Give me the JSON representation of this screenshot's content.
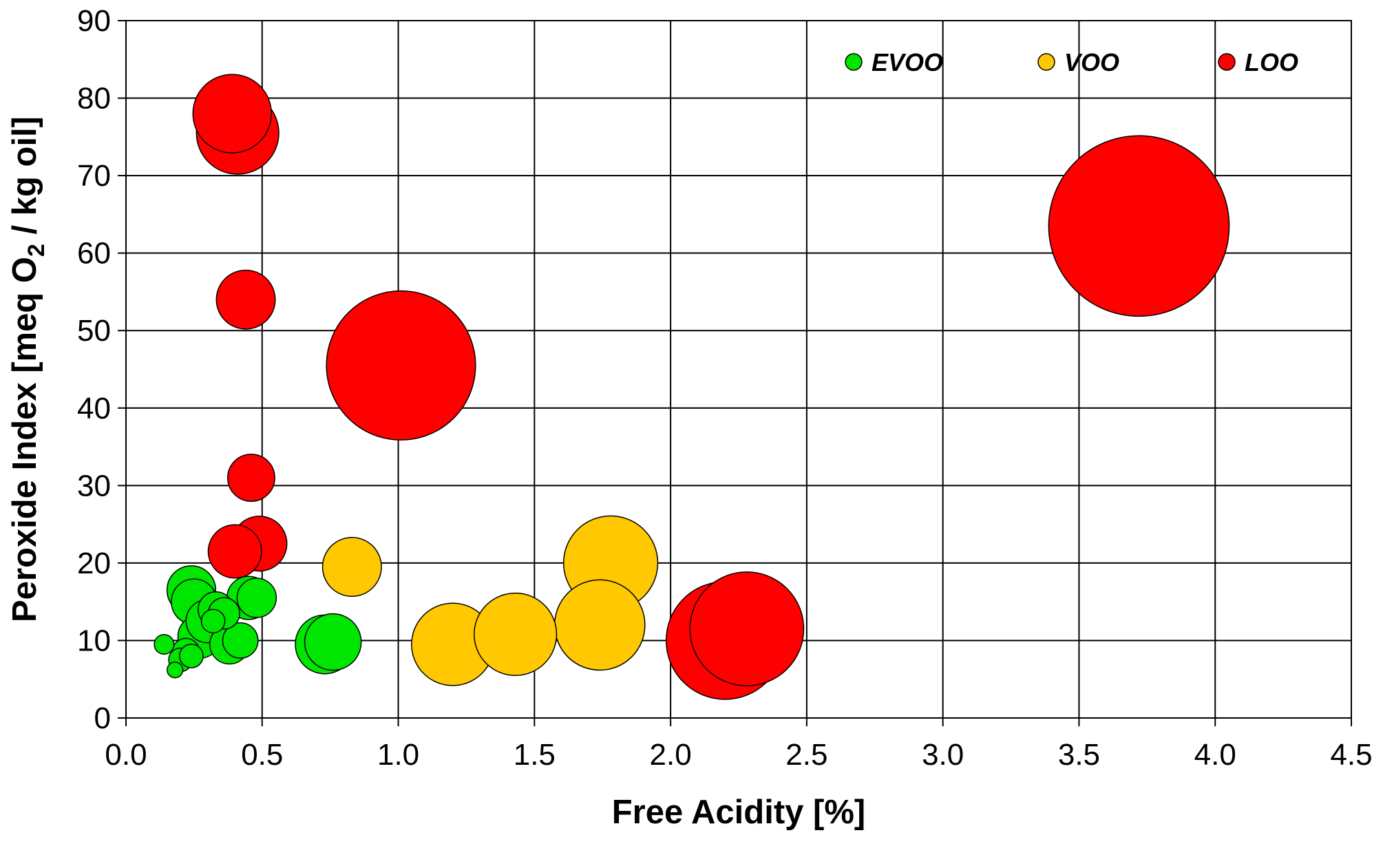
{
  "chart_data": {
    "type": "scatter",
    "subtype": "bubble",
    "title": "",
    "xlabel": "Free Acidity [%]",
    "ylabel_parts": [
      "Peroxide Index [meq O",
      "2",
      " / kg oil]"
    ],
    "xlim": [
      0,
      4.5
    ],
    "ylim": [
      0,
      90
    ],
    "xticks": [
      0,
      0.5,
      1.0,
      1.5,
      2.0,
      2.5,
      3.0,
      3.5,
      4.0,
      4.5
    ],
    "xtick_labels": [
      "0.0",
      "0.5",
      "1.0",
      "1.5",
      "2.0",
      "2.5",
      "3.0",
      "3.5",
      "4.0",
      "4.5"
    ],
    "yticks": [
      0,
      10,
      20,
      30,
      40,
      50,
      60,
      70,
      80,
      90
    ],
    "ytick_labels": [
      "0",
      "10",
      "20",
      "30",
      "40",
      "50",
      "60",
      "70",
      "80",
      "90"
    ],
    "grid": true,
    "legend_position": "top-right",
    "series": [
      {
        "name": "EVOO",
        "color": "#00e600",
        "points": [
          {
            "x": 0.14,
            "y": 9.5,
            "size": 0.25
          },
          {
            "x": 0.18,
            "y": 6.2,
            "size": 0.2
          },
          {
            "x": 0.2,
            "y": 7.5,
            "size": 0.3
          },
          {
            "x": 0.22,
            "y": 8.5,
            "size": 0.35
          },
          {
            "x": 0.24,
            "y": 8.0,
            "size": 0.3
          },
          {
            "x": 0.24,
            "y": 16.5,
            "size": 0.62
          },
          {
            "x": 0.25,
            "y": 15.0,
            "size": 0.58
          },
          {
            "x": 0.27,
            "y": 10.5,
            "size": 0.55
          },
          {
            "x": 0.3,
            "y": 12.5,
            "size": 0.55
          },
          {
            "x": 0.32,
            "y": 12.5,
            "size": 0.3
          },
          {
            "x": 0.33,
            "y": 14.0,
            "size": 0.45
          },
          {
            "x": 0.36,
            "y": 13.5,
            "size": 0.4
          },
          {
            "x": 0.38,
            "y": 9.5,
            "size": 0.5
          },
          {
            "x": 0.42,
            "y": 10.0,
            "size": 0.45
          },
          {
            "x": 0.45,
            "y": 15.5,
            "size": 0.55
          },
          {
            "x": 0.48,
            "y": 15.5,
            "size": 0.5
          },
          {
            "x": 0.73,
            "y": 9.5,
            "size": 0.75
          },
          {
            "x": 0.76,
            "y": 9.8,
            "size": 0.72
          }
        ]
      },
      {
        "name": "VOO",
        "color": "#ffc800",
        "points": [
          {
            "x": 0.83,
            "y": 19.5,
            "size": 0.75
          },
          {
            "x": 1.2,
            "y": 9.5,
            "size": 1.05
          },
          {
            "x": 1.43,
            "y": 10.8,
            "size": 1.05
          },
          {
            "x": 1.74,
            "y": 12.0,
            "size": 1.15
          },
          {
            "x": 1.78,
            "y": 20.0,
            "size": 1.2
          }
        ]
      },
      {
        "name": "LOO",
        "color": "#ff0000",
        "points": [
          {
            "x": 0.41,
            "y": 75.5,
            "size": 1.05
          },
          {
            "x": 0.39,
            "y": 78.0,
            "size": 1.0
          },
          {
            "x": 0.44,
            "y": 54.0,
            "size": 0.75
          },
          {
            "x": 0.46,
            "y": 31.0,
            "size": 0.6
          },
          {
            "x": 0.49,
            "y": 22.5,
            "size": 0.7
          },
          {
            "x": 0.4,
            "y": 21.5,
            "size": 0.68
          },
          {
            "x": 1.01,
            "y": 45.5,
            "size": 1.9
          },
          {
            "x": 2.2,
            "y": 10.0,
            "size": 1.5
          },
          {
            "x": 2.28,
            "y": 11.5,
            "size": 1.45
          },
          {
            "x": 3.72,
            "y": 63.5,
            "size": 2.3
          }
        ]
      }
    ]
  }
}
